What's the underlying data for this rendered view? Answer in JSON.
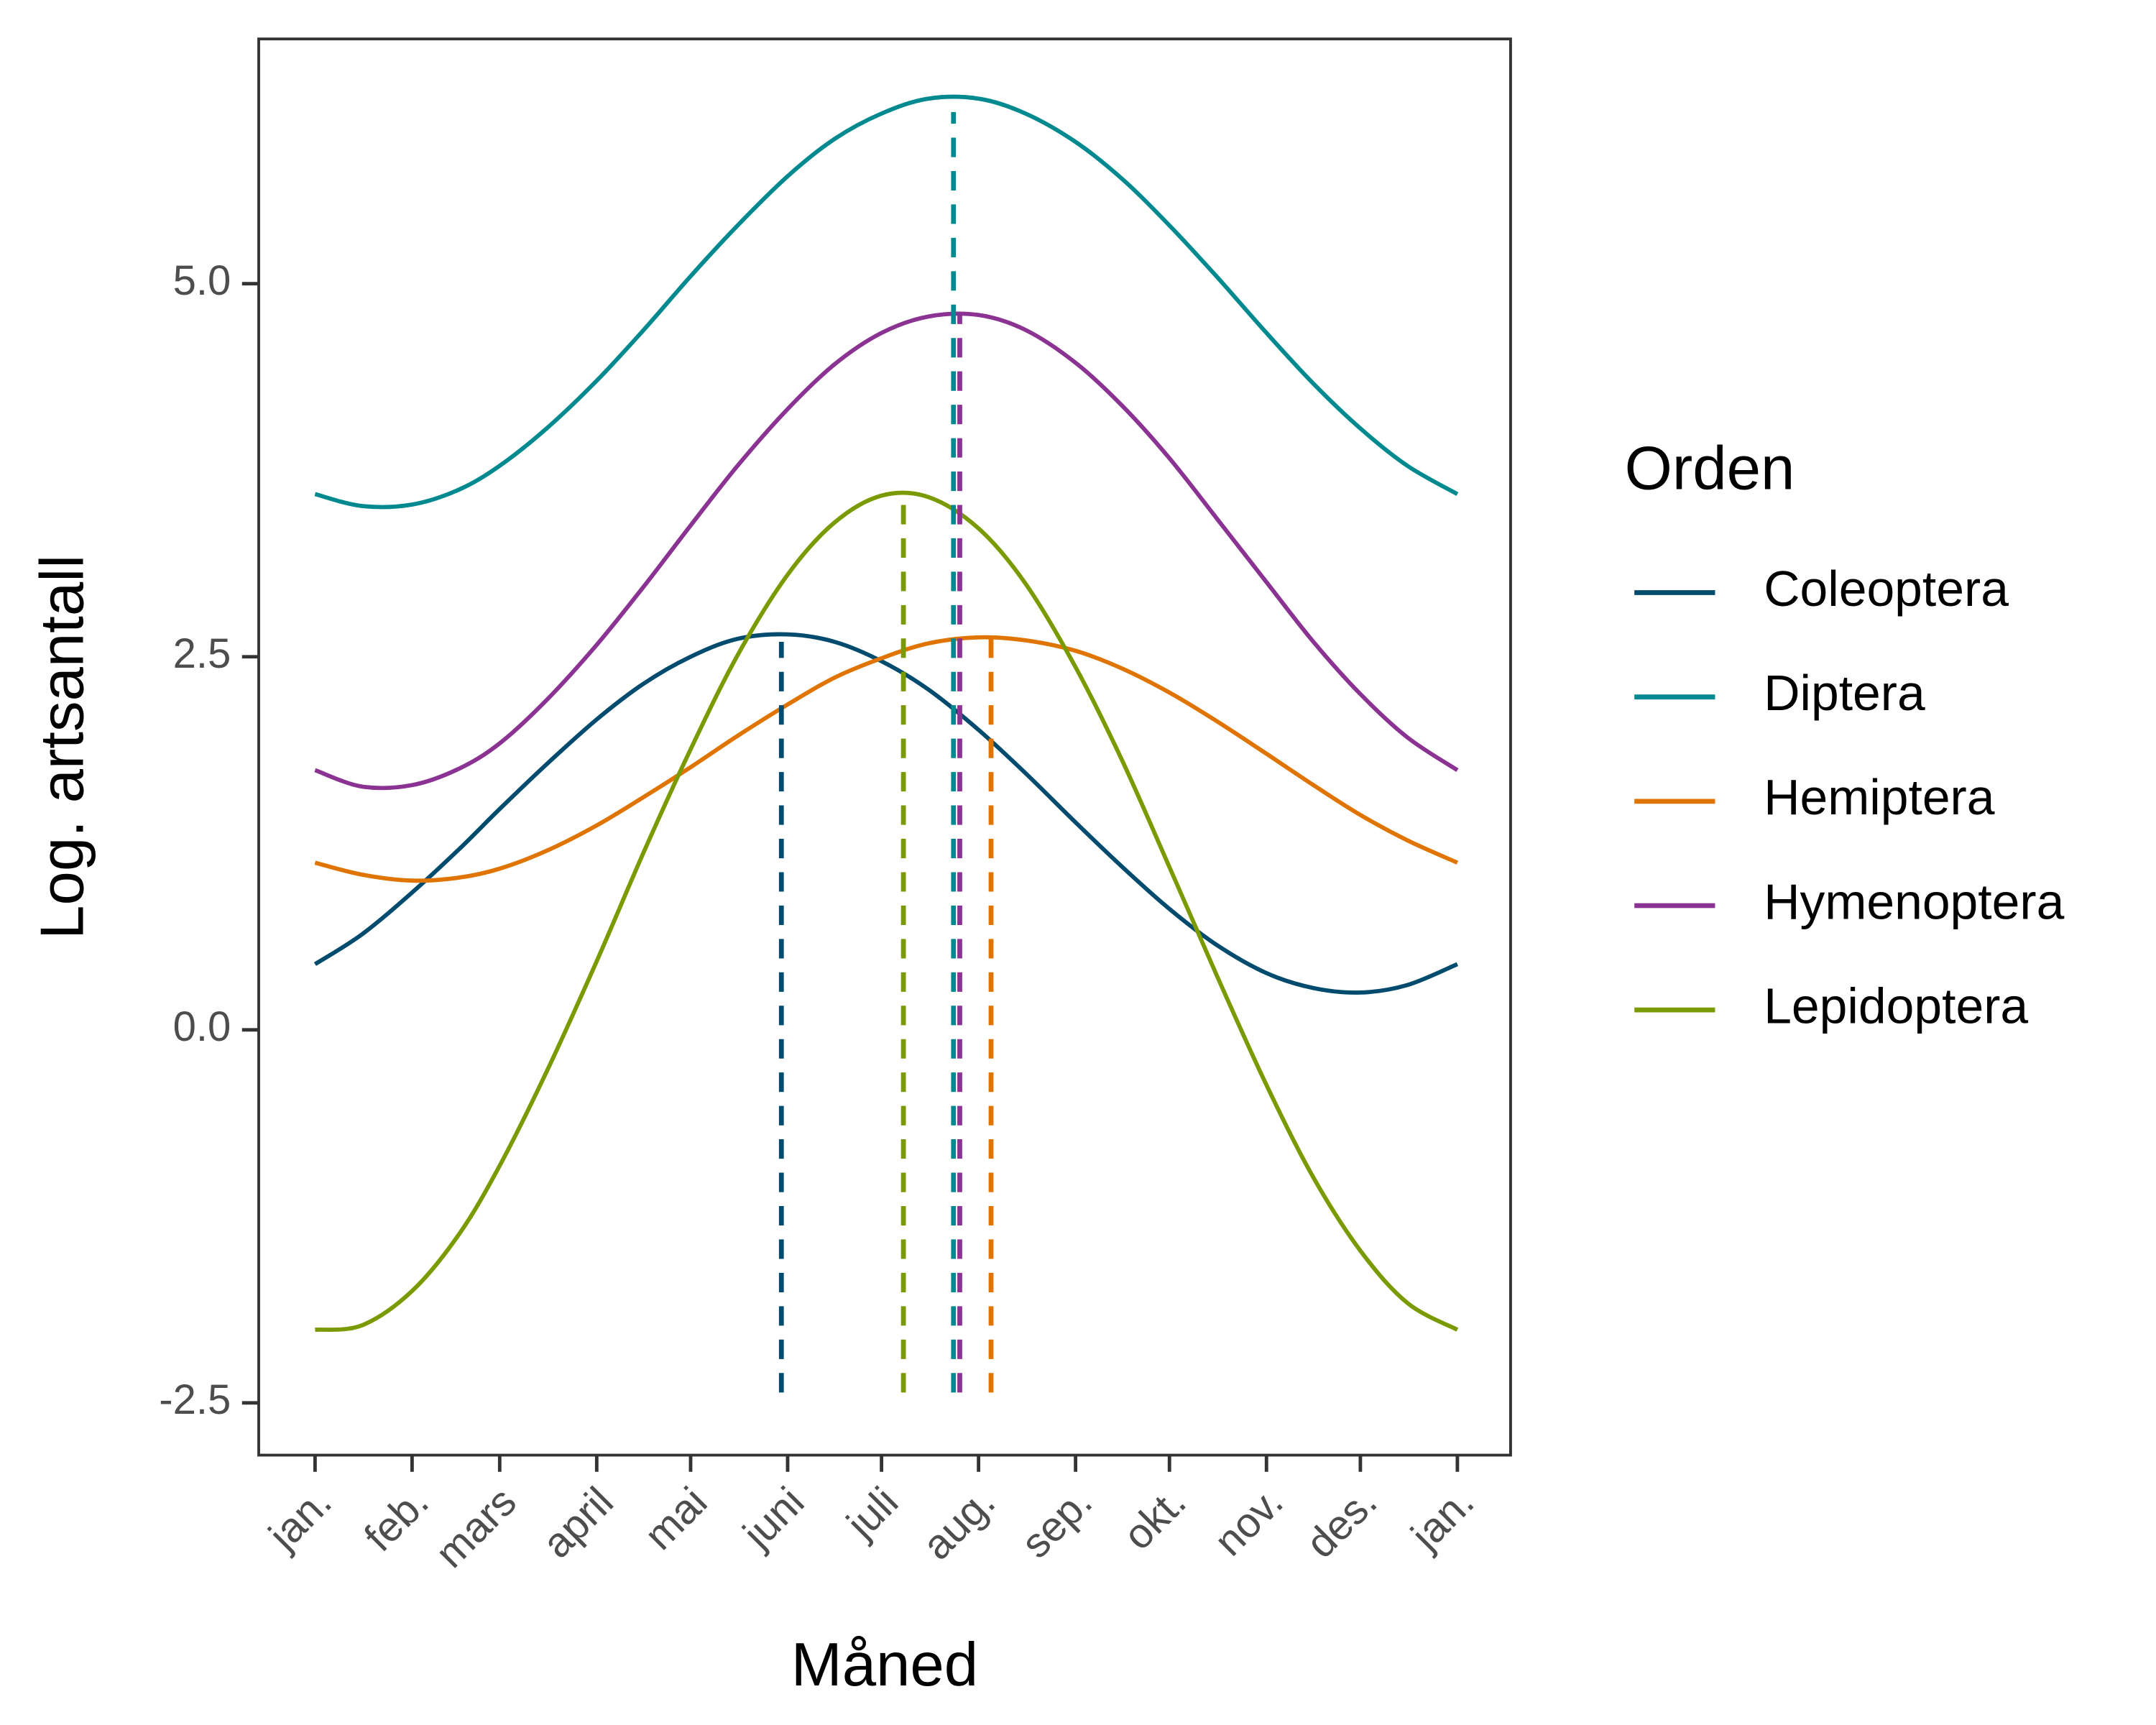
{
  "chart_data": {
    "type": "line",
    "x_label": "Måned",
    "y_label": "Log. artsantall",
    "legend_title": "Orden",
    "legend": "right",
    "x": [
      1,
      16,
      32,
      47,
      60,
      75,
      91,
      106,
      121,
      136,
      152,
      167,
      182,
      197,
      213,
      228,
      244,
      259,
      274,
      289,
      305,
      320,
      335,
      350,
      366
    ],
    "series": [
      {
        "name": "Coleoptera",
        "color": "#004b6e",
        "peak_x": 150,
        "peak_y": 2.6,
        "values": [
          0.44,
          0.64,
          0.92,
          1.21,
          1.48,
          1.78,
          2.08,
          2.32,
          2.5,
          2.62,
          2.65,
          2.6,
          2.47,
          2.28,
          2.01,
          1.72,
          1.39,
          1.09,
          0.81,
          0.57,
          0.38,
          0.28,
          0.25,
          0.3,
          0.44
        ]
      },
      {
        "name": "Diptera",
        "color": "#00898f",
        "peak_x": 205,
        "peak_y": 6.15,
        "values": [
          3.59,
          3.51,
          3.52,
          3.62,
          3.78,
          4.03,
          4.35,
          4.69,
          5.05,
          5.39,
          5.72,
          5.97,
          6.14,
          6.24,
          6.24,
          6.14,
          5.95,
          5.7,
          5.39,
          5.05,
          4.67,
          4.33,
          4.03,
          3.78,
          3.59
        ]
      },
      {
        "name": "Hemiptera",
        "color": "#e07400",
        "peak_x": 217,
        "peak_y": 2.63,
        "values": [
          1.12,
          1.04,
          1.0,
          1.02,
          1.08,
          1.2,
          1.37,
          1.56,
          1.76,
          1.97,
          2.18,
          2.36,
          2.49,
          2.59,
          2.63,
          2.61,
          2.54,
          2.42,
          2.26,
          2.07,
          1.85,
          1.64,
          1.44,
          1.27,
          1.12
        ]
      },
      {
        "name": "Hymenoptera",
        "color": "#8b3393",
        "peak_x": 207,
        "peak_y": 4.8,
        "values": [
          1.74,
          1.63,
          1.64,
          1.75,
          1.92,
          2.21,
          2.58,
          2.97,
          3.38,
          3.78,
          4.16,
          4.46,
          4.67,
          4.78,
          4.79,
          4.69,
          4.47,
          4.18,
          3.83,
          3.43,
          3.0,
          2.6,
          2.25,
          1.96,
          1.74
        ]
      },
      {
        "name": "Lepidoptera",
        "color": "#7a9a01",
        "peak_x": 189,
        "peak_y": 3.6,
        "values": [
          -2.01,
          -1.98,
          -1.75,
          -1.37,
          -0.91,
          -0.28,
          0.46,
          1.19,
          1.88,
          2.51,
          3.05,
          3.4,
          3.58,
          3.57,
          3.36,
          2.99,
          2.43,
          1.8,
          1.09,
          0.37,
          -0.37,
          -0.99,
          -1.48,
          -1.83,
          -2.01
        ]
      }
    ],
    "peak_line_from": -2.43,
    "xlim": [
      -17,
      383
    ],
    "xticks": [
      {
        "value": 1,
        "label": "jan."
      },
      {
        "value": 32,
        "label": "feb."
      },
      {
        "value": 60,
        "label": "mars"
      },
      {
        "value": 91,
        "label": "april"
      },
      {
        "value": 121,
        "label": "mai"
      },
      {
        "value": 152,
        "label": "juni"
      },
      {
        "value": 182,
        "label": "juli"
      },
      {
        "value": 213,
        "label": "aug."
      },
      {
        "value": 244,
        "label": "sep."
      },
      {
        "value": 274,
        "label": "okt."
      },
      {
        "value": 305,
        "label": "nov."
      },
      {
        "value": 335,
        "label": "des."
      },
      {
        "value": 366,
        "label": "jan."
      }
    ],
    "ylim": [
      -2.85,
      6.64
    ],
    "yticks": [
      -2.5,
      {
        "value": 0,
        "label": "0.0"
      },
      {
        "value": 2.5,
        "label": "2.5"
      },
      {
        "value": 5,
        "label": "5.0"
      }
    ],
    "grid": false
  }
}
